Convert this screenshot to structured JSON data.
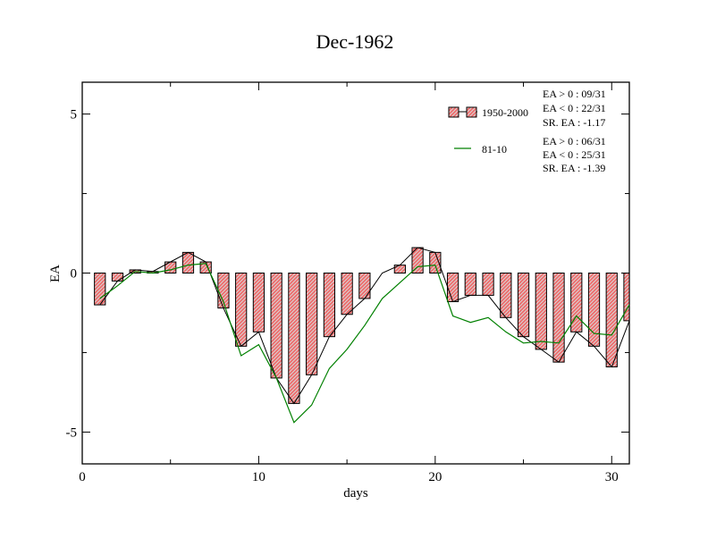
{
  "chart_data": {
    "type": "bar",
    "title": "Dec-1962",
    "xlabel": "days",
    "ylabel": "EA",
    "xlim": [
      0,
      31
    ],
    "ylim": [
      -6,
      6
    ],
    "x_ticks": [
      0,
      10,
      20,
      30
    ],
    "y_ticks": [
      -5,
      0,
      5
    ],
    "x": [
      1,
      2,
      3,
      4,
      5,
      6,
      7,
      8,
      9,
      10,
      11,
      12,
      13,
      14,
      15,
      16,
      17,
      18,
      19,
      20,
      21,
      22,
      23,
      24,
      25,
      26,
      27,
      28,
      29,
      30,
      31
    ],
    "series": [
      {
        "name": "1950-2000",
        "kind": "bar",
        "color": "#e86060",
        "values": [
          -1.0,
          -0.25,
          0.1,
          0.05,
          0.35,
          0.65,
          0.35,
          -1.1,
          -2.3,
          -1.85,
          -3.3,
          -4.1,
          -3.2,
          -2.0,
          -1.3,
          -0.8,
          0.0,
          0.25,
          0.8,
          0.65,
          -0.9,
          -0.7,
          -0.7,
          -1.4,
          -2.0,
          -2.4,
          -2.8,
          -1.85,
          -2.3,
          -2.95,
          -1.5
        ]
      },
      {
        "name": "81-10",
        "kind": "line",
        "color": "#008000",
        "values": [
          -0.8,
          -0.4,
          0.05,
          0.0,
          0.1,
          0.25,
          0.3,
          -0.9,
          -2.6,
          -2.25,
          -3.3,
          -4.7,
          -4.15,
          -3.0,
          -2.4,
          -1.65,
          -0.8,
          -0.3,
          0.2,
          0.25,
          -1.35,
          -1.55,
          -1.4,
          -1.85,
          -2.2,
          -2.15,
          -2.2,
          -1.35,
          -1.9,
          -1.95,
          -1.0
        ]
      }
    ],
    "legend": {
      "placement": "top-right",
      "stats_1950_2000": [
        "EA > 0 : 09/31",
        "EA < 0 : 22/31",
        "SR. EA : -1.17"
      ],
      "stats_81_10": [
        "EA > 0 : 06/31",
        "EA < 0 : 25/31",
        "SR. EA : -1.39"
      ]
    },
    "grid": false
  }
}
